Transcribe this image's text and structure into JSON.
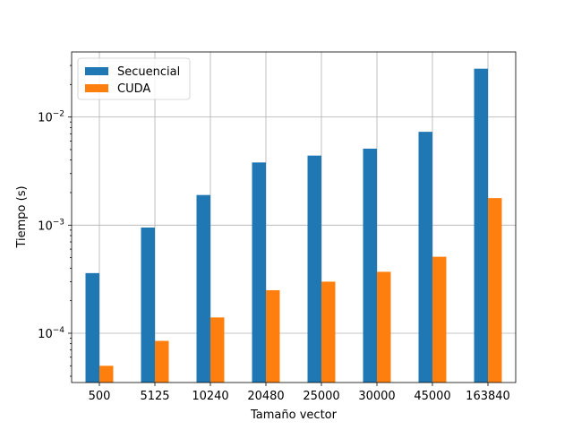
{
  "chart_data": {
    "type": "bar",
    "xlabel": "Tamaño vector",
    "ylabel": "Tiempo (s)",
    "yscale": "log",
    "ylim": [
      3.5e-05,
      0.04
    ],
    "grid": true,
    "legend": {
      "placement": "top-left"
    },
    "categories": [
      "500",
      "5125",
      "10240",
      "20480",
      "25000",
      "30000",
      "45000",
      "163840"
    ],
    "series": [
      {
        "name": "Secuencial",
        "color": "#1f77b4",
        "values": [
          0.00036,
          0.00095,
          0.0019,
          0.0038,
          0.0044,
          0.0051,
          0.0073,
          0.028
        ]
      },
      {
        "name": "CUDA",
        "color": "#ff7f0e",
        "values": [
          5e-05,
          8.5e-05,
          0.00014,
          0.00025,
          0.0003,
          0.00037,
          0.00051,
          0.00178
        ]
      }
    ],
    "y_ticks": [
      {
        "value": 0.0001,
        "base": "10",
        "exp": "−4"
      },
      {
        "value": 0.001,
        "base": "10",
        "exp": "−3"
      },
      {
        "value": 0.01,
        "base": "10",
        "exp": "−2"
      }
    ]
  }
}
